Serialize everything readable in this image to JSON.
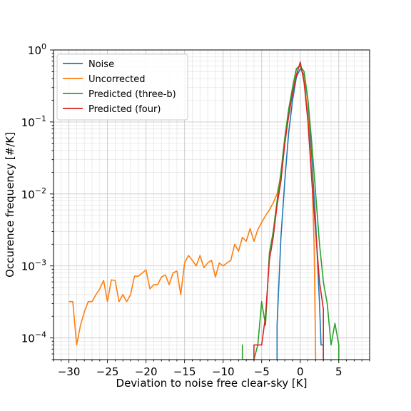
{
  "chart_data": {
    "type": "line",
    "xlabel": "Deviation to noise free clear-sky [K]",
    "ylabel": "Occurence frequency [#/K]",
    "xlim": [
      -32,
      9
    ],
    "ylim": [
      5e-05,
      1.0
    ],
    "yscale": "log",
    "grid": true,
    "legend_position": "top-left",
    "x_ticks": [
      -30,
      -25,
      -20,
      -15,
      -10,
      -5,
      0,
      5
    ],
    "x_tick_labels": [
      "−30",
      "−25",
      "−20",
      "−15",
      "−10",
      "−5",
      "0",
      "5"
    ],
    "y_ticks": [
      0.0001,
      0.001,
      0.01,
      0.1,
      1
    ],
    "y_tick_labels": [
      {
        "base": "10",
        "exp": "−4"
      },
      {
        "base": "10",
        "exp": "−3"
      },
      {
        "base": "10",
        "exp": "−2"
      },
      {
        "base": "10",
        "exp": "−1"
      },
      {
        "base": "10",
        "exp": "0"
      }
    ],
    "series": [
      {
        "name": "Noise",
        "color": "#1f77b4",
        "points": [
          [
            -3,
            5e-05
          ],
          [
            -3,
            0.00015
          ],
          [
            -2.5,
            0.0025
          ],
          [
            -2,
            0.015
          ],
          [
            -1.5,
            0.07
          ],
          [
            -1,
            0.2
          ],
          [
            -0.5,
            0.42
          ],
          [
            0,
            0.55
          ],
          [
            0.5,
            0.45
          ],
          [
            1,
            0.2
          ],
          [
            1.5,
            0.03
          ],
          [
            2,
            0.004
          ],
          [
            2.5,
            0.0003
          ],
          [
            2.7,
            8e-05
          ],
          [
            3,
            8e-05
          ],
          [
            3,
            5e-05
          ]
        ]
      },
      {
        "name": "Uncorrected",
        "color": "#ff7f0e",
        "points": [
          [
            -30,
            0.00032
          ],
          [
            -29.5,
            0.00032
          ],
          [
            -29,
            8e-05
          ],
          [
            -28.5,
            0.00015
          ],
          [
            -28,
            0.00023
          ],
          [
            -27.5,
            0.00032
          ],
          [
            -27,
            0.00032
          ],
          [
            -26.5,
            0.0004
          ],
          [
            -26,
            0.00048
          ],
          [
            -25.5,
            0.00063
          ],
          [
            -25,
            0.00032
          ],
          [
            -24.5,
            0.00064
          ],
          [
            -24,
            0.00063
          ],
          [
            -23.5,
            0.00032
          ],
          [
            -23,
            0.0004
          ],
          [
            -22.5,
            0.00032
          ],
          [
            -22,
            0.0004
          ],
          [
            -21.5,
            0.00072
          ],
          [
            -21,
            0.00072
          ],
          [
            -20.5,
            0.0008
          ],
          [
            -20,
            0.00088
          ],
          [
            -19.5,
            0.00048
          ],
          [
            -19,
            0.00055
          ],
          [
            -18.5,
            0.00055
          ],
          [
            -18,
            0.0007
          ],
          [
            -17.5,
            0.00075
          ],
          [
            -17,
            0.00055
          ],
          [
            -16.5,
            0.0008
          ],
          [
            -16,
            0.00085
          ],
          [
            -15.5,
            0.0004
          ],
          [
            -15,
            0.0011
          ],
          [
            -14.5,
            0.0014
          ],
          [
            -14,
            0.0012
          ],
          [
            -13.5,
            0.001
          ],
          [
            -13,
            0.0014
          ],
          [
            -12.5,
            0.00095
          ],
          [
            -12,
            0.0011
          ],
          [
            -11.5,
            0.0012
          ],
          [
            -11,
            0.0007
          ],
          [
            -10.5,
            0.0011
          ],
          [
            -10,
            0.001
          ],
          [
            -9.5,
            0.0011
          ],
          [
            -9,
            0.0012
          ],
          [
            -8.5,
            0.002
          ],
          [
            -8,
            0.0016
          ],
          [
            -7.5,
            0.0025
          ],
          [
            -7,
            0.0022
          ],
          [
            -6.5,
            0.0033
          ],
          [
            -6,
            0.0022
          ],
          [
            -5.5,
            0.0032
          ],
          [
            -5,
            0.004
          ],
          [
            -4.5,
            0.005
          ],
          [
            -4,
            0.006
          ],
          [
            -3.5,
            0.0075
          ],
          [
            -3,
            0.01
          ],
          [
            -2.5,
            0.018
          ],
          [
            -2,
            0.05
          ],
          [
            -1.5,
            0.13
          ],
          [
            -1,
            0.3
          ],
          [
            -0.5,
            0.55
          ],
          [
            0,
            0.6
          ],
          [
            0.5,
            0.4
          ],
          [
            1,
            0.12
          ],
          [
            1.5,
            0.02
          ],
          [
            1.8,
            0.002
          ],
          [
            2,
            5e-05
          ]
        ]
      },
      {
        "name": "Predicted (three-b)",
        "color": "#2ca02c",
        "points": [
          [
            -7.5,
            5e-05
          ],
          [
            -7.5,
            8e-05
          ],
          [
            -7.5,
            5e-05
          ],
          [
            -6,
            5e-05
          ],
          [
            -5.5,
            8e-05
          ],
          [
            -5,
            0.00032
          ],
          [
            -4.5,
            0.00015
          ],
          [
            -4,
            0.0015
          ],
          [
            -3.5,
            0.003
          ],
          [
            -3,
            0.008
          ],
          [
            -2.5,
            0.02
          ],
          [
            -2,
            0.06
          ],
          [
            -1.5,
            0.15
          ],
          [
            -1,
            0.3
          ],
          [
            -0.5,
            0.55
          ],
          [
            0,
            0.6
          ],
          [
            0.5,
            0.5
          ],
          [
            1,
            0.2
          ],
          [
            1.5,
            0.05
          ],
          [
            2,
            0.01
          ],
          [
            2.5,
            0.002
          ],
          [
            3,
            0.0006
          ],
          [
            3.5,
            0.0003
          ],
          [
            4,
            8e-05
          ],
          [
            4.5,
            0.00016
          ],
          [
            5,
            8e-05
          ],
          [
            5,
            5e-05
          ]
        ]
      },
      {
        "name": "Predicted (four)",
        "color": "#d62728",
        "points": [
          [
            -6,
            5e-05
          ],
          [
            -6,
            8e-05
          ],
          [
            -5,
            8e-05
          ],
          [
            -4.5,
            0.0002
          ],
          [
            -4,
            0.0012
          ],
          [
            -3.5,
            0.0025
          ],
          [
            -3,
            0.007
          ],
          [
            -2.5,
            0.015
          ],
          [
            -2,
            0.05
          ],
          [
            -1.5,
            0.12
          ],
          [
            -1,
            0.25
          ],
          [
            -0.5,
            0.45
          ],
          [
            0,
            0.68
          ],
          [
            0.5,
            0.35
          ],
          [
            1,
            0.1
          ],
          [
            1.5,
            0.015
          ],
          [
            2,
            0.003
          ],
          [
            2.5,
            0.0006
          ],
          [
            3,
            0.00025
          ],
          [
            3,
            5e-05
          ]
        ]
      }
    ]
  }
}
